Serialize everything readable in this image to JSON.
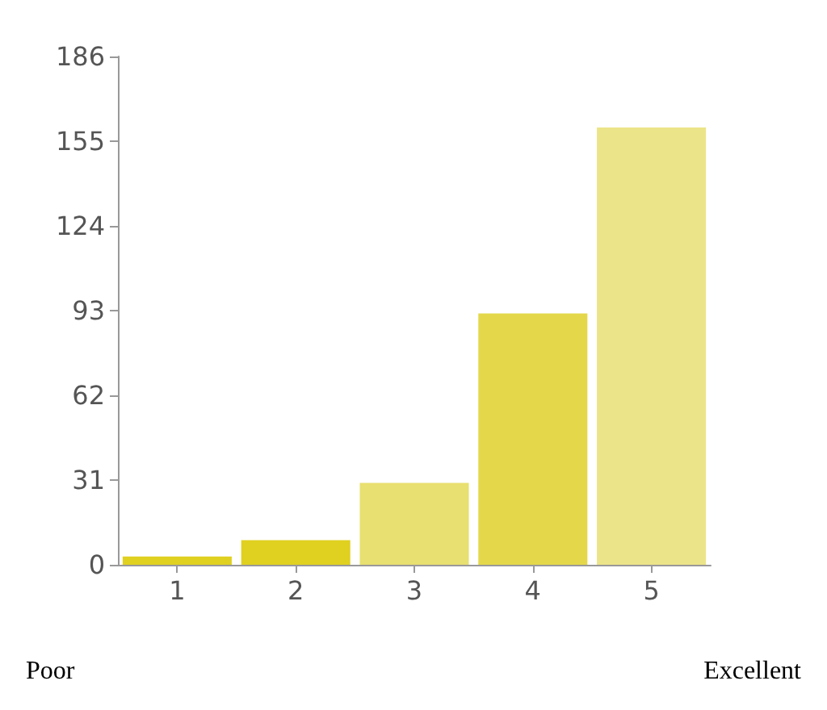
{
  "chart_data": {
    "type": "bar",
    "categories": [
      "1",
      "2",
      "3",
      "4",
      "5"
    ],
    "values": [
      3,
      9,
      30,
      92,
      160
    ],
    "colors": [
      "#e0d020",
      "#e0d020",
      "#e8e070",
      "#e4d84a",
      "#ece488"
    ],
    "ylim": [
      0,
      186
    ],
    "yticks": [
      0,
      31,
      62,
      93,
      124,
      155,
      186
    ],
    "grid": false,
    "annotations": [
      "Poor",
      "Excellent"
    ]
  }
}
